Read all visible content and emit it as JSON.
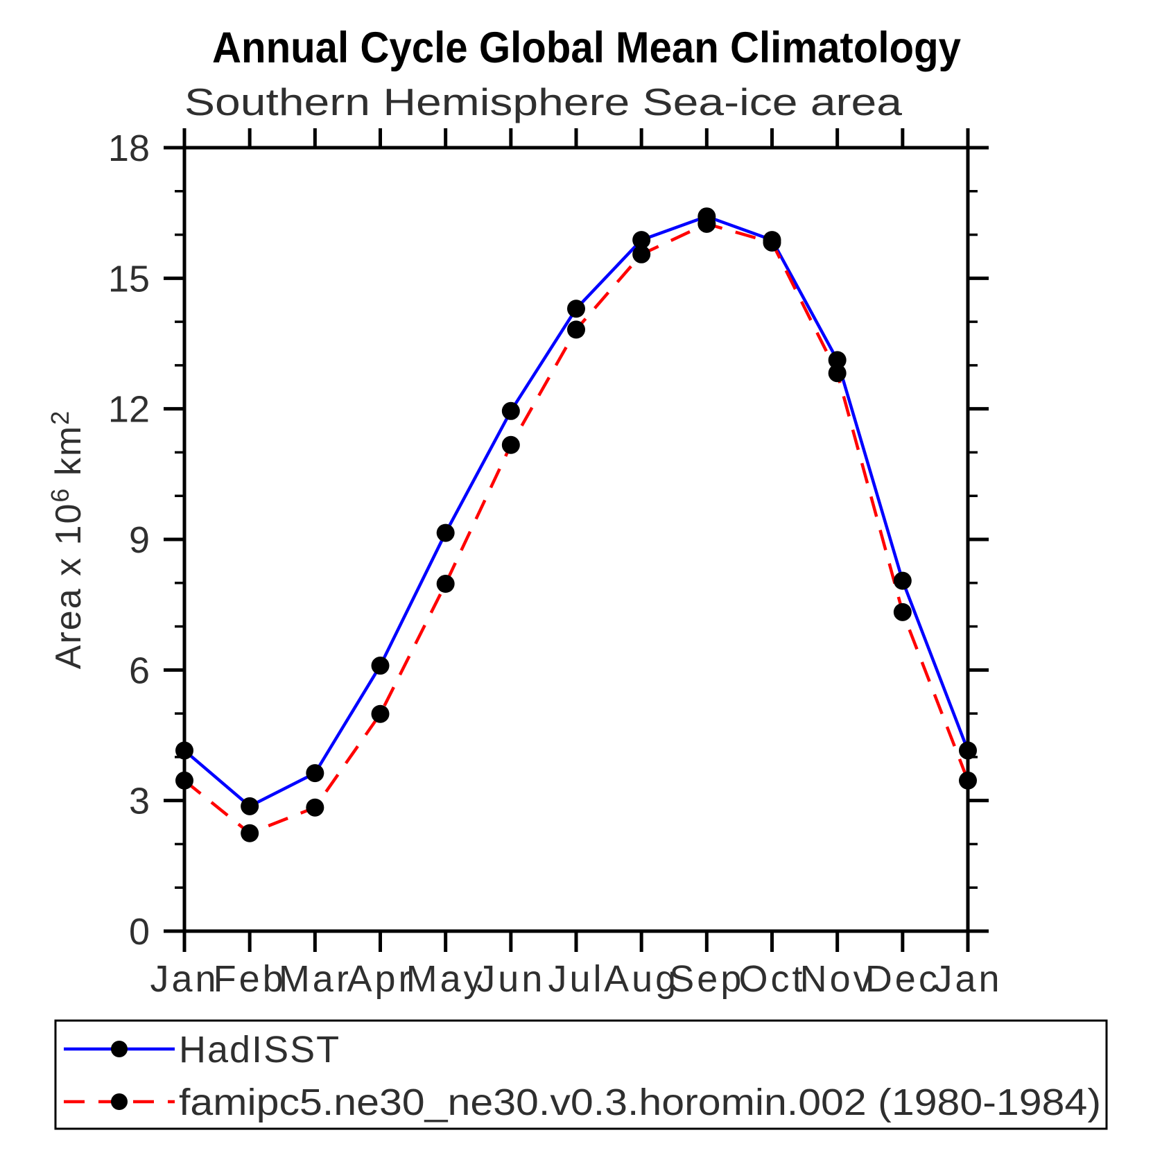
{
  "chart_data": {
    "type": "line",
    "title": "Annual Cycle Global Mean Climatology",
    "subtitle": "Southern Hemisphere Sea-ice area",
    "categories": [
      "Jan",
      "Feb",
      "Mar",
      "Apr",
      "May",
      "Jun",
      "Jul",
      "Aug",
      "Sep",
      "Oct",
      "Nov",
      "Dec",
      "Jan"
    ],
    "series": [
      {
        "name": "HadISST",
        "line_color": "#0000ff",
        "line_style": "solid",
        "marker_color": "#000000",
        "values": [
          4.15,
          2.87,
          3.63,
          6.1,
          9.15,
          11.95,
          14.3,
          15.88,
          16.42,
          15.88,
          13.12,
          8.05,
          4.15
        ]
      },
      {
        "name": "famipc5.ne30_ne30.v0.3.horomin.002 (1980-1984)",
        "line_color": "#ff0000",
        "line_style": "dashed",
        "marker_color": "#000000",
        "values": [
          3.46,
          2.25,
          2.84,
          4.99,
          7.98,
          11.17,
          13.82,
          15.55,
          16.25,
          15.82,
          12.82,
          7.33,
          3.46
        ]
      }
    ],
    "ylabel_parts": {
      "main": "Area x 10",
      "sup1": "6",
      "mid": "km",
      "sup2": "2"
    },
    "ylabel_text": "Area x 10^6 km^2",
    "ylim": [
      0,
      18
    ],
    "ytick_major_step": 3,
    "ytick_minor_step": 1,
    "ytick_major_labels": [
      "0",
      "3",
      "6",
      "9",
      "12",
      "15",
      "18"
    ],
    "grid": "off",
    "legend_position": "bottom-left-box",
    "axis_color": "#000000"
  }
}
